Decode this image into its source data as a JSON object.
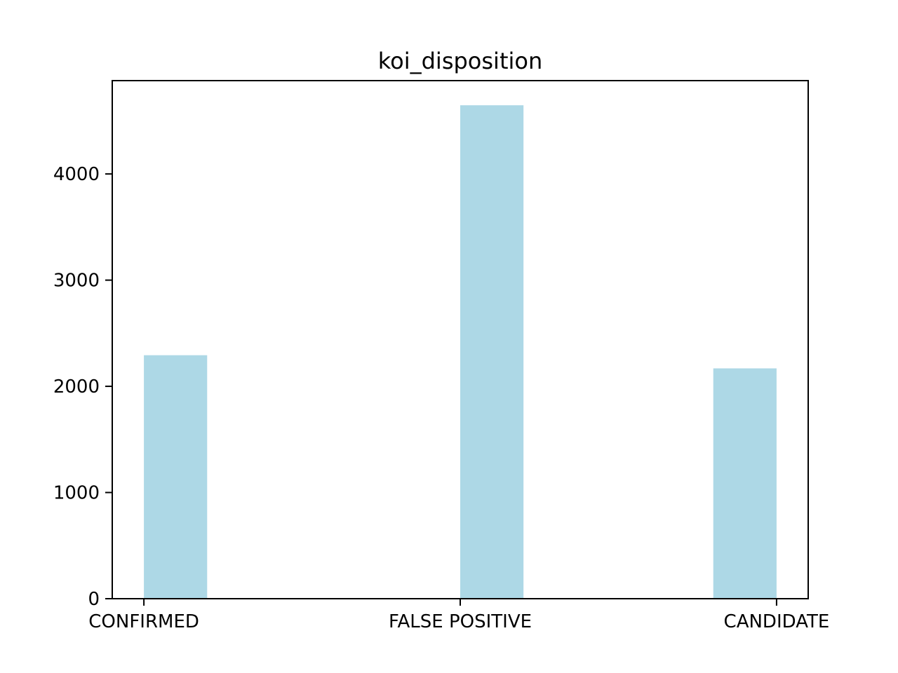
{
  "chart_data": {
    "type": "bar",
    "title": "koi_disposition",
    "xlabel": "",
    "ylabel": "",
    "categories": [
      "CONFIRMED",
      "FALSE POSITIVE",
      "CANDIDATE"
    ],
    "x_tick_values": [
      0,
      1,
      2
    ],
    "bar_positions": [
      0.1,
      1.1,
      1.9
    ],
    "bar_width": 0.2,
    "values": [
      2293,
      4647,
      2169
    ],
    "xlim": [
      -0.1,
      2.1
    ],
    "ylim": [
      0,
      4879
    ],
    "yticks": [
      0,
      1000,
      2000,
      3000,
      4000
    ],
    "bar_color": "#add8e6",
    "grid": false,
    "legend": "none"
  }
}
